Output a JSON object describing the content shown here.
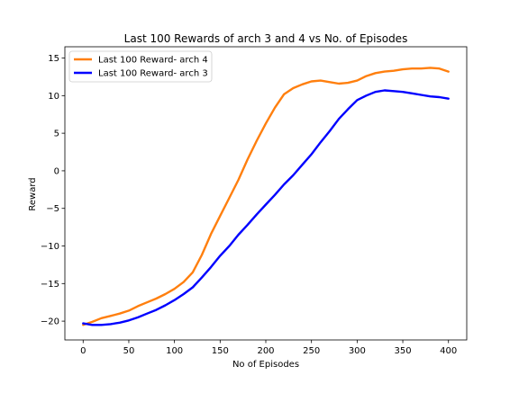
{
  "chart_data": {
    "type": "line",
    "title": "Last 100 Rewards of arch 3 and 4 vs No. of Episodes",
    "xlabel": "No of Episodes",
    "ylabel": "Reward",
    "xlim": [
      -20,
      420
    ],
    "ylim": [
      -22.5,
      16.5
    ],
    "xticks": [
      0,
      50,
      100,
      150,
      200,
      250,
      300,
      350,
      400
    ],
    "yticks": [
      -20,
      -15,
      -10,
      -5,
      0,
      5,
      10,
      15
    ],
    "grid": false,
    "legend_position": "top-left",
    "series": [
      {
        "name": "Last 100 Reward- arch 4",
        "color": "#ff7f0e",
        "x": [
          0,
          10,
          20,
          30,
          40,
          50,
          60,
          70,
          80,
          90,
          100,
          110,
          120,
          130,
          140,
          150,
          160,
          170,
          180,
          190,
          200,
          210,
          220,
          230,
          240,
          250,
          260,
          270,
          280,
          290,
          300,
          310,
          320,
          330,
          340,
          350,
          360,
          370,
          380,
          390,
          400
        ],
        "y": [
          -20.5,
          -20.1,
          -19.6,
          -19.3,
          -19.0,
          -18.6,
          -18.0,
          -17.5,
          -17.0,
          -16.4,
          -15.7,
          -14.8,
          -13.5,
          -11.2,
          -8.4,
          -6.0,
          -3.6,
          -1.2,
          1.5,
          4.0,
          6.3,
          8.4,
          10.2,
          11.0,
          11.5,
          11.9,
          12.0,
          11.8,
          11.6,
          11.7,
          12.0,
          12.6,
          13.0,
          13.2,
          13.3,
          13.5,
          13.6,
          13.6,
          13.7,
          13.6,
          13.2
        ]
      },
      {
        "name": "Last 100 Reward- arch 3",
        "color": "#0000ff",
        "x": [
          0,
          10,
          20,
          30,
          40,
          50,
          60,
          70,
          80,
          90,
          100,
          110,
          120,
          130,
          140,
          150,
          160,
          170,
          180,
          190,
          200,
          210,
          220,
          230,
          240,
          250,
          260,
          270,
          280,
          290,
          300,
          310,
          320,
          330,
          340,
          350,
          360,
          370,
          380,
          390,
          400
        ],
        "y": [
          -20.3,
          -20.5,
          -20.5,
          -20.4,
          -20.2,
          -19.9,
          -19.5,
          -19.0,
          -18.5,
          -17.9,
          -17.2,
          -16.4,
          -15.5,
          -14.2,
          -12.8,
          -11.3,
          -10.0,
          -8.5,
          -7.2,
          -5.8,
          -4.5,
          -3.2,
          -1.8,
          -0.6,
          0.8,
          2.2,
          3.8,
          5.3,
          6.9,
          8.2,
          9.4,
          10.0,
          10.5,
          10.7,
          10.6,
          10.5,
          10.3,
          10.1,
          9.9,
          9.8,
          9.6
        ]
      }
    ]
  }
}
